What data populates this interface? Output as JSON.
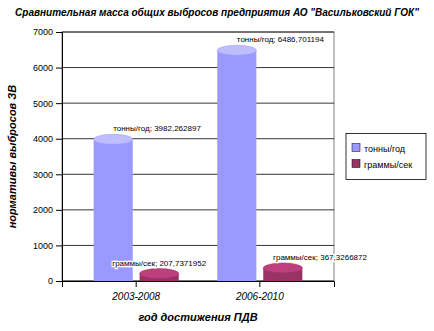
{
  "chart_data": {
    "type": "bar",
    "title": "Сравнительная масса общих выбросов предприятия АО \"Васильковский ГОК\"",
    "x_label": "год достижения ПДВ",
    "y_label": "нормативы выбросов ЗВ",
    "categories": [
      "2003-2008",
      "2006-2010"
    ],
    "series": [
      {
        "name": "тонны/год",
        "color": "#9999ff",
        "values": [
          3982.262897,
          6486.701194
        ],
        "value_labels": [
          "тонны/год; 3982,262897",
          "тонны/год; 6486,701194"
        ]
      },
      {
        "name": "граммы/сек",
        "color": "#993366",
        "values": [
          207.7371952,
          367.3266872
        ],
        "value_labels": [
          "граммы/сек; 207,7371952",
          "граммы/сек; 367,3266872"
        ]
      }
    ],
    "ylim": [
      0,
      7000
    ],
    "yticks": [
      0,
      1000,
      2000,
      3000,
      4000,
      5000,
      6000,
      7000
    ],
    "grid": true,
    "legend": "right",
    "data_labels": true
  }
}
